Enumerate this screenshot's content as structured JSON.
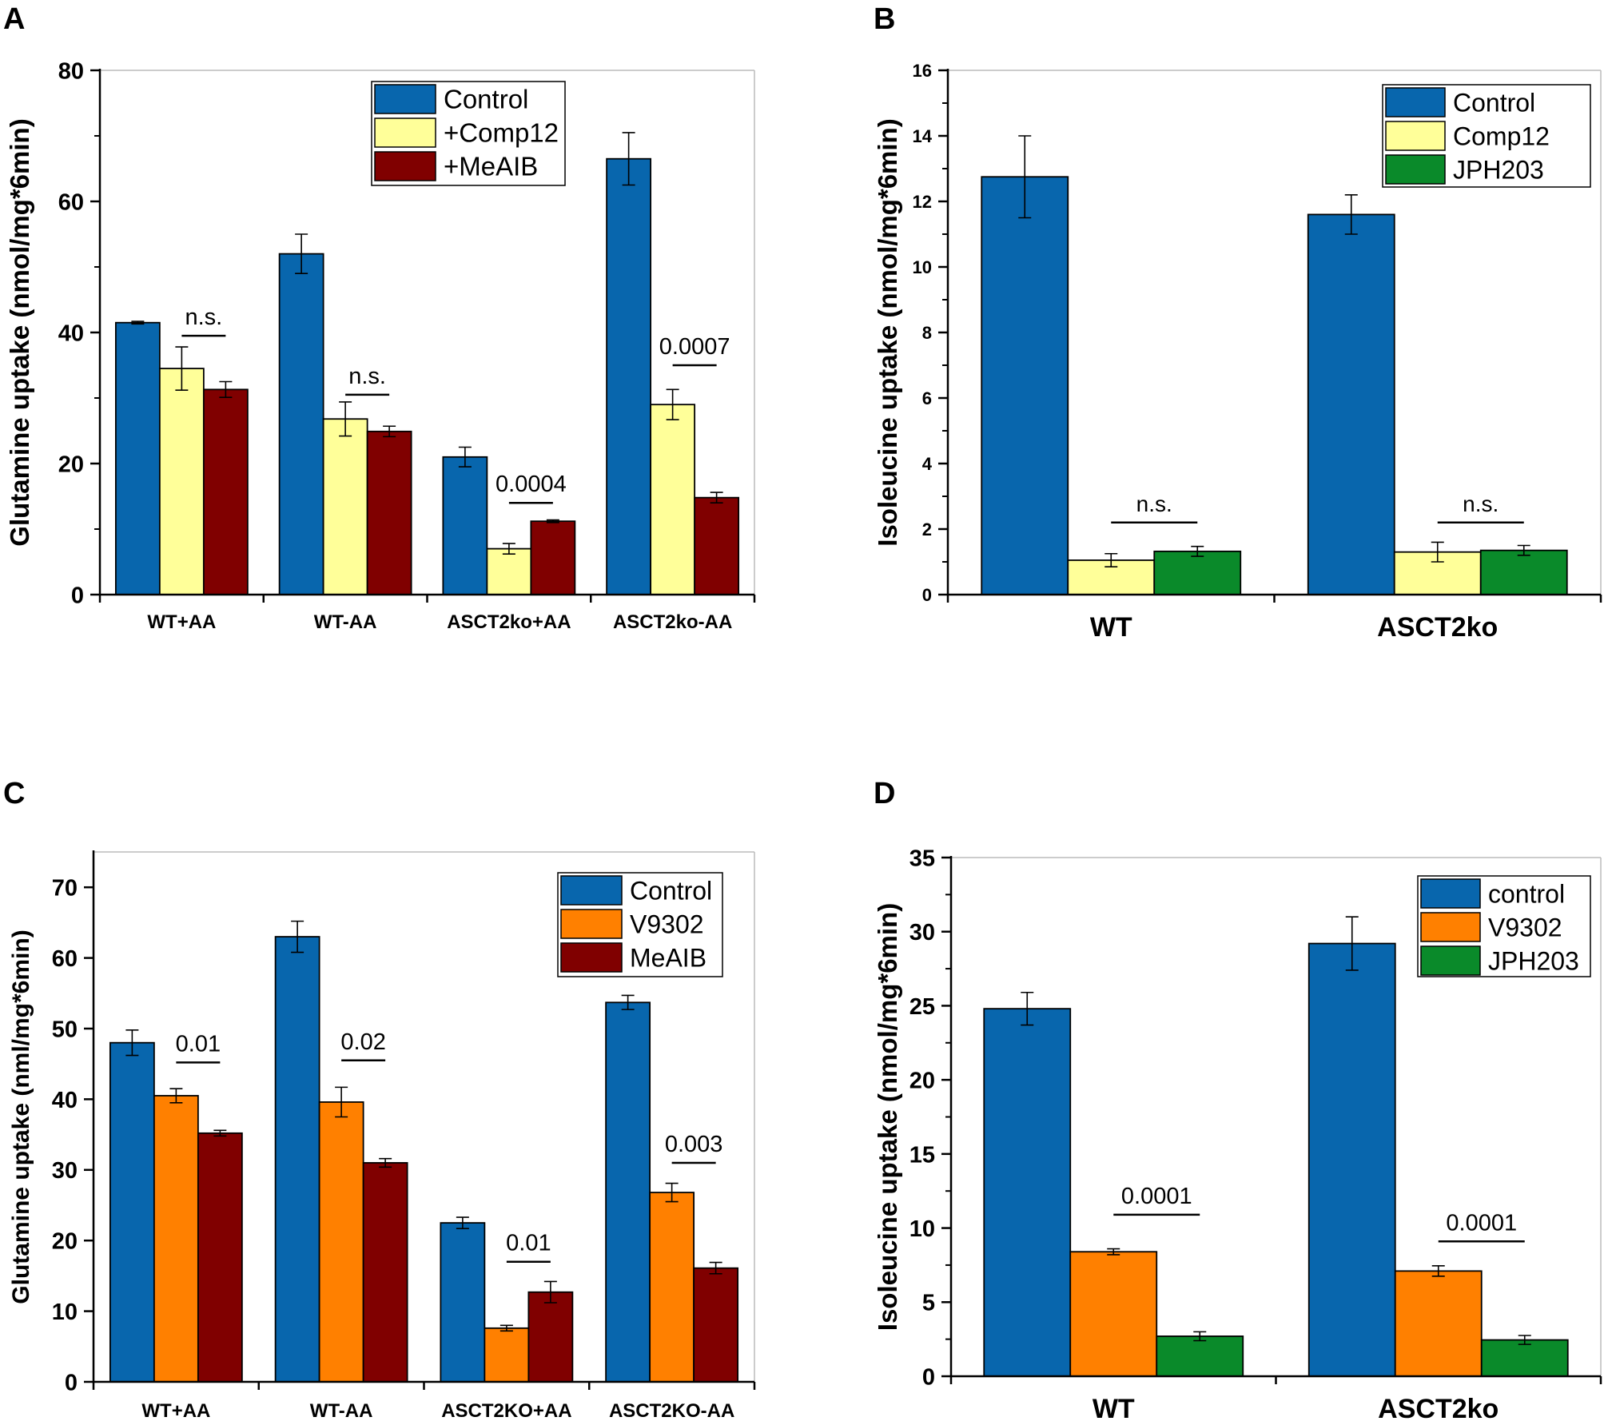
{
  "figure": {
    "panels": [
      "A",
      "B",
      "C",
      "D"
    ]
  },
  "colors": {
    "control": "#0866ad",
    "comp12": "#ffff99",
    "meaib": "#800000",
    "jph203": "#0a8a2a",
    "v9302": "#ff8000",
    "axis": "#000000",
    "frame": "#bbbbbb"
  },
  "chart_data": [
    {
      "panel": "A",
      "type": "bar",
      "title": "",
      "xlabel": "",
      "ylabel": "Glutamine uptake (nmol/mg*6min)",
      "ylim": [
        0,
        80
      ],
      "yticks": [
        0,
        20,
        40,
        60,
        80
      ],
      "categories": [
        "WT+AA",
        "WT-AA",
        "ASCT2ko+AA",
        "ASCT2ko-AA"
      ],
      "series": [
        {
          "name": "Control",
          "color": "#0866ad",
          "values": [
            41.5,
            52.0,
            21.0,
            66.5
          ],
          "errors": [
            0.2,
            3.0,
            1.5,
            4.0
          ]
        },
        {
          "name": "+Comp12",
          "color": "#ffff99",
          "values": [
            34.5,
            26.8,
            7.0,
            29.0
          ],
          "errors": [
            3.3,
            2.6,
            0.8,
            2.3
          ]
        },
        {
          "name": "+MeAIB",
          "color": "#800000",
          "values": [
            31.3,
            24.9,
            11.2,
            14.8
          ],
          "errors": [
            1.2,
            0.8,
            0.2,
            0.8
          ]
        }
      ],
      "annotations": [
        {
          "category": 0,
          "text": "n.s.",
          "y": 39.5
        },
        {
          "category": 1,
          "text": "n.s.",
          "y": 30.5
        },
        {
          "category": 2,
          "text": "0.0004",
          "y": 14.0
        },
        {
          "category": 3,
          "text": "0.0007",
          "y": 35.0
        }
      ],
      "legend": "top-center"
    },
    {
      "panel": "B",
      "type": "bar",
      "title": "",
      "xlabel": "",
      "ylabel": "Isoleucine uptake (nmol/mg*6min)",
      "ylim": [
        0,
        16
      ],
      "yticks": [
        0,
        2,
        4,
        6,
        8,
        10,
        12,
        14,
        16
      ],
      "categories": [
        "WT",
        "ASCT2ko"
      ],
      "series": [
        {
          "name": "Control",
          "color": "#0866ad",
          "values": [
            12.75,
            11.6
          ],
          "errors": [
            1.25,
            0.6
          ]
        },
        {
          "name": "Comp12",
          "color": "#ffff99",
          "values": [
            1.05,
            1.3
          ],
          "errors": [
            0.2,
            0.3
          ]
        },
        {
          "name": "JPH203",
          "color": "#0a8a2a",
          "values": [
            1.32,
            1.35
          ],
          "errors": [
            0.15,
            0.15
          ]
        }
      ],
      "annotations": [
        {
          "category": 0,
          "text": "n.s.",
          "y": 2.2
        },
        {
          "category": 1,
          "text": "n.s.",
          "y": 2.2
        }
      ],
      "legend": "top-right"
    },
    {
      "panel": "C",
      "type": "bar",
      "title": "",
      "xlabel": "",
      "ylabel": "Glutamine uptake (nml/mg*6min)",
      "ylim": [
        0,
        75
      ],
      "yticks": [
        0,
        10,
        20,
        30,
        40,
        50,
        60,
        70
      ],
      "categories": [
        "WT+AA",
        "WT-AA",
        "ASCT2KO+AA",
        "ASCT2KO-AA"
      ],
      "series": [
        {
          "name": "Control",
          "color": "#0866ad",
          "values": [
            48.0,
            63.0,
            22.5,
            53.7
          ],
          "errors": [
            1.8,
            2.2,
            0.8,
            1.0
          ]
        },
        {
          "name": "V9302",
          "color": "#ff8000",
          "values": [
            40.5,
            39.6,
            7.6,
            26.8
          ],
          "errors": [
            1.0,
            2.1,
            0.4,
            1.3
          ]
        },
        {
          "name": "MeAIB",
          "color": "#800000",
          "values": [
            35.2,
            31.0,
            12.7,
            16.1
          ],
          "errors": [
            0.4,
            0.6,
            1.5,
            0.8
          ]
        }
      ],
      "annotations": [
        {
          "category": 0,
          "text": "0.01",
          "y": 45.2
        },
        {
          "category": 1,
          "text": "0.02",
          "y": 45.5
        },
        {
          "category": 2,
          "text": "0.01",
          "y": 17.0
        },
        {
          "category": 3,
          "text": "0.003",
          "y": 31.0
        }
      ],
      "legend": "top-right"
    },
    {
      "panel": "D",
      "type": "bar",
      "title": "",
      "xlabel": "",
      "ylabel": "Isoleucine uptake (nmol/mg*6min)",
      "ylim": [
        0,
        35
      ],
      "yticks": [
        0,
        5,
        10,
        15,
        20,
        25,
        30,
        35
      ],
      "categories": [
        "WT",
        "ASCT2ko"
      ],
      "series": [
        {
          "name": "control",
          "color": "#0866ad",
          "values": [
            24.8,
            29.2
          ],
          "errors": [
            1.1,
            1.8
          ]
        },
        {
          "name": "V9302",
          "color": "#ff8000",
          "values": [
            8.4,
            7.1
          ],
          "errors": [
            0.2,
            0.35
          ]
        },
        {
          "name": "JPH203",
          "color": "#0a8a2a",
          "values": [
            2.7,
            2.45
          ],
          "errors": [
            0.3,
            0.3
          ]
        }
      ],
      "annotations": [
        {
          "category": 0,
          "text": "0.0001",
          "y": 10.9
        },
        {
          "category": 1,
          "text": "0.0001",
          "y": 9.1
        }
      ],
      "legend": "top-right"
    }
  ]
}
